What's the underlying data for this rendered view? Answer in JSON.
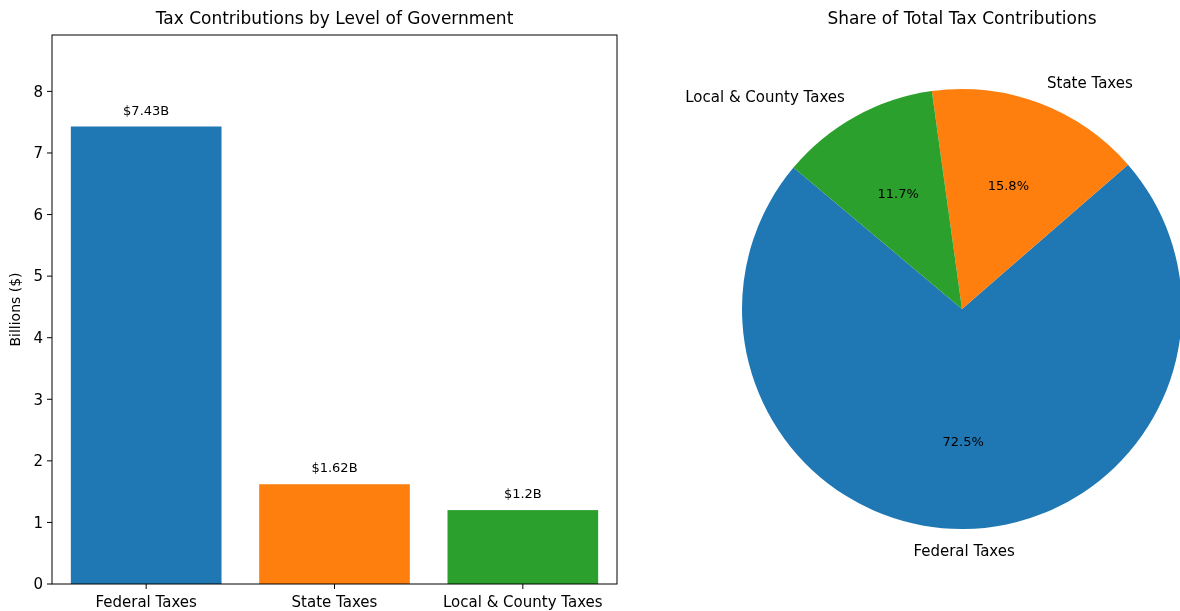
{
  "chart_data": [
    {
      "type": "bar",
      "title": "Tax Contributions by Level of Government",
      "ylabel": "Billions ($)",
      "categories": [
        "Federal Taxes",
        "State Taxes",
        "Local & County Taxes"
      ],
      "values": [
        7.43,
        1.62,
        1.2
      ],
      "colors": [
        "#1f77b4",
        "#ff7f0e",
        "#2ca02c"
      ],
      "value_labels": [
        "$7.43B",
        "$1.62B",
        "$1.2B"
      ],
      "ylim": [
        0,
        8.916
      ],
      "yticks": [
        0,
        1,
        2,
        3,
        4,
        5,
        6,
        7,
        8
      ]
    },
    {
      "type": "pie",
      "title": "Share of Total Tax Contributions",
      "categories": [
        "Federal Taxes",
        "State Taxes",
        "Local & County Taxes"
      ],
      "values": [
        72.5,
        15.8,
        11.7
      ],
      "colors": [
        "#1f77b4",
        "#ff7f0e",
        "#2ca02c"
      ],
      "value_labels": [
        "72.5%",
        "15.8%",
        "11.7%"
      ]
    }
  ]
}
